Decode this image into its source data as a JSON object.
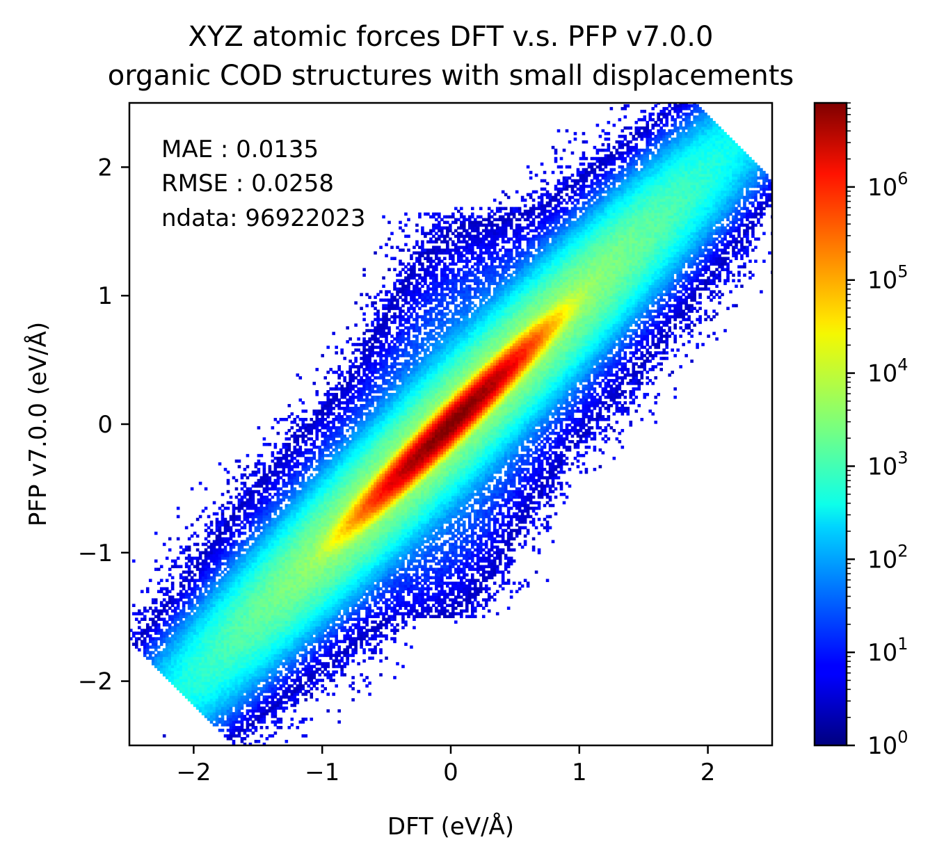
{
  "chart_data": {
    "type": "heatmap",
    "subtype": "2d-histogram",
    "title_line1": "XYZ atomic forces DFT v.s. PFP v7.0.0",
    "title_line2": "organic COD structures with small displacements",
    "xlabel": "DFT (eV/Å)",
    "ylabel": "PFP v7.0.0 (eV/Å)",
    "xlim": [
      -2.5,
      2.5
    ],
    "ylim": [
      -2.5,
      2.5
    ],
    "x_ticks": [
      -2,
      -1,
      0,
      1,
      2
    ],
    "y_ticks": [
      -2,
      -1,
      0,
      1,
      2
    ],
    "x_tick_labels": [
      "−2",
      "−1",
      "0",
      "1",
      "2"
    ],
    "y_tick_labels": [
      "−2",
      "−1",
      "0",
      "1",
      "2"
    ],
    "colormap": "jet",
    "colorbar": {
      "scale": "log",
      "range": [
        1,
        8000000
      ],
      "ticks": [
        1,
        10,
        100,
        1000,
        10000,
        100000,
        1000000
      ],
      "tick_labels": [
        {
          "base": "10",
          "exp": "0"
        },
        {
          "base": "10",
          "exp": "1"
        },
        {
          "base": "10",
          "exp": "2"
        },
        {
          "base": "10",
          "exp": "3"
        },
        {
          "base": "10",
          "exp": "4"
        },
        {
          "base": "10",
          "exp": "5"
        },
        {
          "base": "10",
          "exp": "6"
        }
      ]
    },
    "annotations": [
      "MAE : 0.0135",
      "RMSE : 0.0258",
      "ndata: 96922023"
    ],
    "stats": {
      "mae": 0.0135,
      "rmse": 0.0258,
      "ndata": 96922023
    },
    "distribution": {
      "relation": "y ≈ x",
      "peak_count": 8000000,
      "peak_location": [
        0,
        0
      ],
      "core_spread_along_diagonal": 0.35,
      "core_spread_perpendicular": 0.04,
      "outer_spread_along_diagonal": 1.3,
      "outer_spread_perpendicular": 0.15,
      "diagonal_extent": [
        -2.1,
        2.2
      ],
      "vertical_plume_x_range": [
        -0.8,
        0.9
      ],
      "vertical_plume_y_range": [
        -1.5,
        1.7
      ]
    },
    "grid": false,
    "legend": "none"
  }
}
